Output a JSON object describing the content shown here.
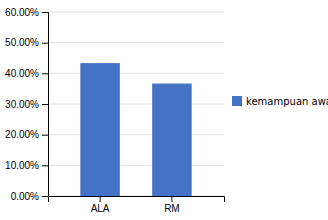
{
  "chart_data": {
    "type": "bar",
    "categories": [
      "ALA",
      "RM"
    ],
    "series": [
      {
        "name": "kemampuan awal",
        "color": "#4472C4",
        "values": [
          0.4333,
          0.3667
        ]
      }
    ],
    "ylim": [
      0.0,
      0.6
    ],
    "yticks": [
      {
        "value": 0.0,
        "label": "0.00%"
      },
      {
        "value": 0.1,
        "label": "10.00%"
      },
      {
        "value": 0.2,
        "label": "20.00%"
      },
      {
        "value": 0.3,
        "label": "30.00%"
      },
      {
        "value": 0.4,
        "label": "40.00%"
      },
      {
        "value": 0.5,
        "label": "50.00%"
      },
      {
        "value": 0.6,
        "label": "60.00%"
      }
    ],
    "grid": true,
    "legend": "right"
  }
}
